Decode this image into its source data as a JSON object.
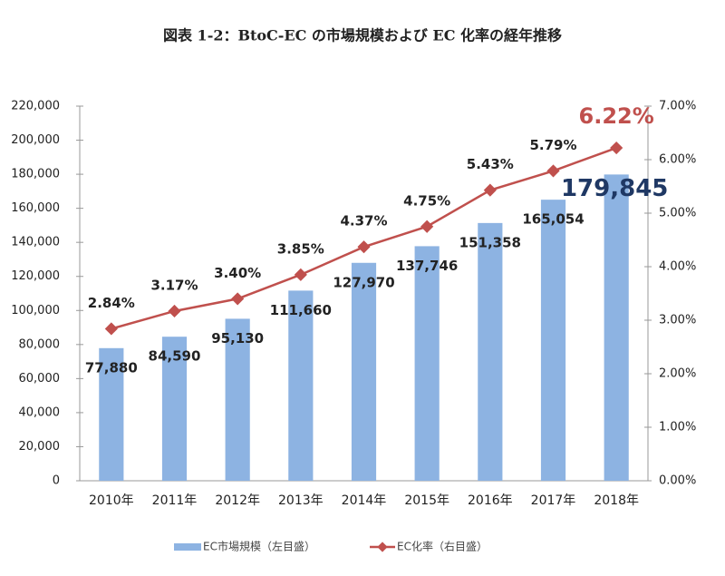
{
  "chart_data": {
    "type": "bar",
    "title": "図表 1-2：BtoC-EC の市場規模および EC 化率の経年推移",
    "categories": [
      "2010年",
      "2011年",
      "2012年",
      "2013年",
      "2014年",
      "2015年",
      "2016年",
      "2017年",
      "2018年"
    ],
    "series": [
      {
        "name": "EC市場規模（左目盛）",
        "color": "#8db3e2",
        "values": [
          77880,
          84590,
          95130,
          111660,
          127970,
          137746,
          151358,
          165054,
          179845
        ],
        "value_labels": [
          "77,880",
          "84,590",
          "95,130",
          "111,660",
          "127,970",
          "137,746",
          "151,358",
          "165,054",
          "179,845"
        ]
      },
      {
        "name": "EC化率（右目盛）",
        "color": "#c0504d",
        "type": "line",
        "axis": "y2",
        "values": [
          2.84,
          3.17,
          3.4,
          3.85,
          4.37,
          4.75,
          5.43,
          5.79,
          6.22
        ],
        "value_labels": [
          "2.84%",
          "3.17%",
          "3.40%",
          "3.85%",
          "4.37%",
          "4.75%",
          "5.43%",
          "5.79%",
          "6.22%"
        ]
      }
    ],
    "ylim": [
      0,
      220000
    ],
    "yticks": [
      0,
      {
        "value": 20000,
        "label": "20,000"
      },
      {
        "value": 40000,
        "label": "40,000"
      },
      {
        "value": 60000,
        "label": "60,000"
      },
      {
        "value": 80000,
        "label": "80,000"
      },
      {
        "value": 100000,
        "label": "100,000"
      },
      {
        "value": 120000,
        "label": "120,000"
      },
      {
        "value": 140000,
        "label": "140,000"
      },
      {
        "value": 160000,
        "label": "160,000"
      },
      {
        "value": 180000,
        "label": "180,000"
      },
      {
        "value": 200000,
        "label": "200,000"
      },
      {
        "value": 220000,
        "label": "220,000"
      }
    ],
    "y2lim": [
      0,
      7
    ],
    "y2ticks": [
      {
        "value": 0,
        "label": "0.00%"
      },
      {
        "value": 1,
        "label": "1.00%"
      },
      {
        "value": 2,
        "label": "2.00%"
      },
      {
        "value": 3,
        "label": "3.00%"
      },
      {
        "value": 4,
        "label": "4.00%"
      },
      {
        "value": 5,
        "label": "5.00%"
      },
      {
        "value": 6,
        "label": "6.00%"
      },
      {
        "value": 7,
        "label": "7.00%"
      }
    ],
    "grid": false
  }
}
